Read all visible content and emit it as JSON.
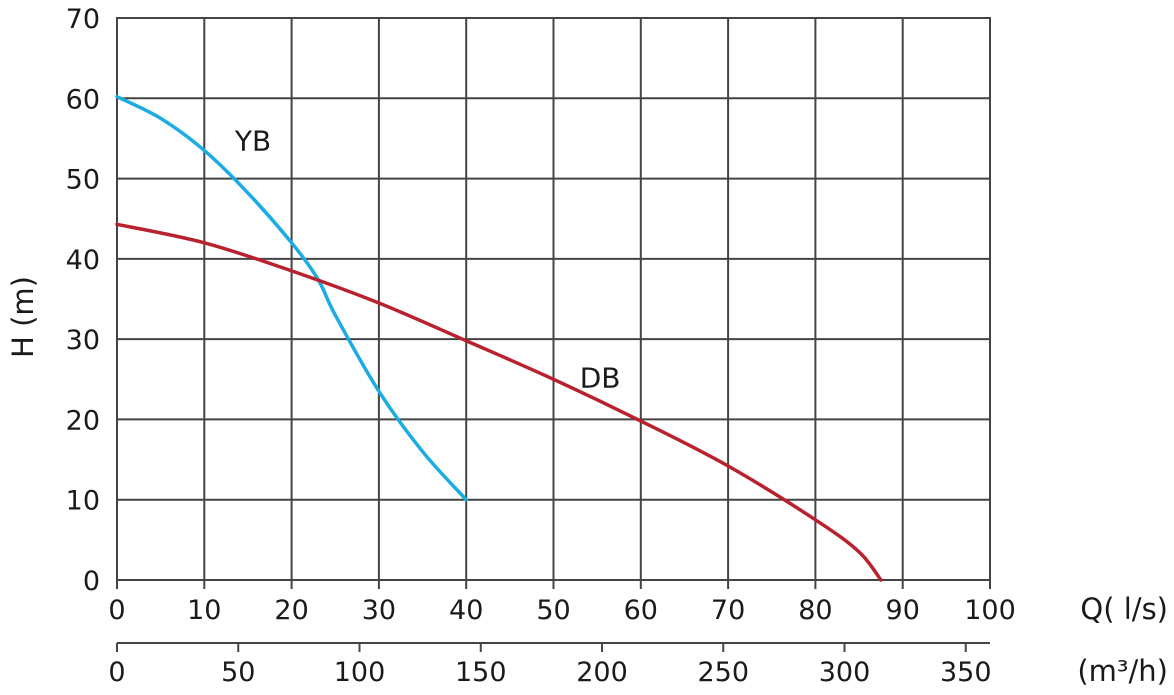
{
  "chart_data": {
    "type": "line",
    "title": "",
    "xlabel": "Q( l/s)",
    "x2label": "(m³/h)",
    "ylabel": "H (m)",
    "xlim": [
      0,
      100
    ],
    "ylim": [
      0,
      70
    ],
    "x_ticks": [
      "0",
      "10",
      "20",
      "30",
      "40",
      "50",
      "60",
      "70",
      "80",
      "90",
      "100"
    ],
    "x2_ticks": [
      "0",
      "50",
      "100",
      "150",
      "200",
      "250",
      "300",
      "350"
    ],
    "y_ticks": [
      "0",
      "10",
      "20",
      "30",
      "40",
      "50",
      "60",
      "70"
    ],
    "grid": true,
    "series": [
      {
        "name": "YB",
        "color": "#1aace3",
        "x": [
          0,
          5,
          10,
          15,
          20,
          23,
          25,
          30,
          35,
          40
        ],
        "y": [
          60.2,
          57.5,
          53.5,
          48.2,
          42,
          37.5,
          33,
          23.5,
          16,
          10
        ]
      },
      {
        "name": "DB",
        "color": "#b8222e",
        "x": [
          0,
          10,
          20,
          30,
          40,
          50,
          60,
          70,
          80,
          85,
          87.5
        ],
        "y": [
          44.3,
          42,
          38.5,
          34.5,
          29.8,
          25,
          19.8,
          14.2,
          7.5,
          3.5,
          0
        ]
      }
    ]
  }
}
